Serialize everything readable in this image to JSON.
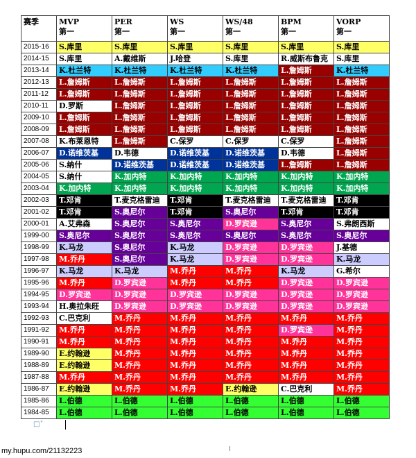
{
  "header": {
    "season": "赛季",
    "columns": [
      {
        "name": "MVP",
        "sub": "第一"
      },
      {
        "name": "PER",
        "sub": "第一"
      },
      {
        "name": "WS",
        "sub": "第一"
      },
      {
        "name": "WS/48",
        "sub": "第一"
      },
      {
        "name": "BPM",
        "sub": "第一"
      },
      {
        "name": "VORP",
        "sub": "第一"
      }
    ]
  },
  "colors": {
    "yellow": "#ffff66",
    "white": "#ffffff",
    "cyan": "#33ccff",
    "darkred": "#990000",
    "navy": "#003399",
    "green": "#00a650",
    "black": "#000000",
    "purple": "#660099",
    "magenta": "#ff3399",
    "lavender": "#ccccff",
    "red": "#ff0000",
    "lime": "#33ff33"
  },
  "rows": [
    {
      "season": "2015-16",
      "cells": [
        [
          "S.库里",
          "yellow"
        ],
        [
          "S.库里",
          "yellow"
        ],
        [
          "S.库里",
          "yellow"
        ],
        [
          "S.库里",
          "yellow"
        ],
        [
          "S.库里",
          "yellow"
        ],
        [
          "S.库里",
          "yellow"
        ]
      ]
    },
    {
      "season": "2014-15",
      "cells": [
        [
          "S.库里",
          "white"
        ],
        [
          "A.戴维斯",
          "white"
        ],
        [
          "J.哈登",
          "white"
        ],
        [
          "S.库里",
          "white"
        ],
        [
          "R.威斯布鲁克",
          "white"
        ],
        [
          "S.库里",
          "white"
        ]
      ]
    },
    {
      "season": "2013-14",
      "cells": [
        [
          "K.杜兰特",
          "cyan"
        ],
        [
          "K.杜兰特",
          "cyan"
        ],
        [
          "K.杜兰特",
          "cyan"
        ],
        [
          "K.杜兰特",
          "cyan"
        ],
        [
          "L.詹姆斯",
          "darkred"
        ],
        [
          "K.杜兰特",
          "cyan"
        ]
      ]
    },
    {
      "season": "2012-13",
      "cells": [
        [
          "L.詹姆斯",
          "darkred"
        ],
        [
          "L.詹姆斯",
          "darkred"
        ],
        [
          "L.詹姆斯",
          "darkred"
        ],
        [
          "L.詹姆斯",
          "darkred"
        ],
        [
          "L.詹姆斯",
          "darkred"
        ],
        [
          "L.詹姆斯",
          "darkred"
        ]
      ]
    },
    {
      "season": "2011-12",
      "cells": [
        [
          "L.詹姆斯",
          "darkred"
        ],
        [
          "L.詹姆斯",
          "darkred"
        ],
        [
          "L.詹姆斯",
          "darkred"
        ],
        [
          "L.詹姆斯",
          "darkred"
        ],
        [
          "L.詹姆斯",
          "darkred"
        ],
        [
          "L.詹姆斯",
          "darkred"
        ]
      ]
    },
    {
      "season": "2010-11",
      "cells": [
        [
          "D.罗斯",
          "white"
        ],
        [
          "L.詹姆斯",
          "darkred"
        ],
        [
          "L.詹姆斯",
          "darkred"
        ],
        [
          "L.詹姆斯",
          "darkred"
        ],
        [
          "L.詹姆斯",
          "darkred"
        ],
        [
          "L.詹姆斯",
          "darkred"
        ]
      ]
    },
    {
      "season": "2009-10",
      "cells": [
        [
          "L.詹姆斯",
          "darkred"
        ],
        [
          "L.詹姆斯",
          "darkred"
        ],
        [
          "L.詹姆斯",
          "darkred"
        ],
        [
          "L.詹姆斯",
          "darkred"
        ],
        [
          "L.詹姆斯",
          "darkred"
        ],
        [
          "L.詹姆斯",
          "darkred"
        ]
      ]
    },
    {
      "season": "2008-09",
      "cells": [
        [
          "L.詹姆斯",
          "darkred"
        ],
        [
          "L.詹姆斯",
          "darkred"
        ],
        [
          "L.詹姆斯",
          "darkred"
        ],
        [
          "L.詹姆斯",
          "darkred"
        ],
        [
          "L.詹姆斯",
          "darkred"
        ],
        [
          "L.詹姆斯",
          "darkred"
        ]
      ]
    },
    {
      "season": "2007-08",
      "cells": [
        [
          "K.布莱恩特",
          "white"
        ],
        [
          "L.詹姆斯",
          "darkred"
        ],
        [
          "C.保罗",
          "white"
        ],
        [
          "C.保罗",
          "white"
        ],
        [
          "C.保罗",
          "white"
        ],
        [
          "L.詹姆斯",
          "darkred"
        ]
      ]
    },
    {
      "season": "2006-07",
      "cells": [
        [
          "D.诺维茨基",
          "navy"
        ],
        [
          "D.韦德",
          "white"
        ],
        [
          "D.诺维茨基",
          "navy"
        ],
        [
          "D.诺维茨基",
          "navy"
        ],
        [
          "D.韦德",
          "white"
        ],
        [
          "L.詹姆斯",
          "darkred"
        ]
      ]
    },
    {
      "season": "2005-06",
      "cells": [
        [
          "S.纳什",
          "white"
        ],
        [
          "D.诺维茨基",
          "navy"
        ],
        [
          "D.诺维茨基",
          "navy"
        ],
        [
          "D.诺维茨基",
          "navy"
        ],
        [
          "L.詹姆斯",
          "darkred"
        ],
        [
          "L.詹姆斯",
          "darkred"
        ]
      ]
    },
    {
      "season": "2004-05",
      "cells": [
        [
          "S.纳什",
          "white"
        ],
        [
          "K.加内特",
          "green"
        ],
        [
          "K.加内特",
          "green"
        ],
        [
          "K.加内特",
          "green"
        ],
        [
          "K.加内特",
          "green"
        ],
        [
          "K.加内特",
          "green"
        ]
      ]
    },
    {
      "season": "2003-04",
      "cells": [
        [
          "K.加内特",
          "green"
        ],
        [
          "K.加内特",
          "green"
        ],
        [
          "K.加内特",
          "green"
        ],
        [
          "K.加内特",
          "green"
        ],
        [
          "K.加内特",
          "green"
        ],
        [
          "K.加内特",
          "green"
        ]
      ]
    },
    {
      "season": "2002-03",
      "cells": [
        [
          "T.邓肯",
          "black"
        ],
        [
          "T.麦克格雷迪",
          "white"
        ],
        [
          "T.邓肯",
          "black"
        ],
        [
          "T.麦克格雷迪",
          "white"
        ],
        [
          "T.麦克格雷迪",
          "white"
        ],
        [
          "T.邓肯",
          "black"
        ]
      ]
    },
    {
      "season": "2001-02",
      "cells": [
        [
          "T.邓肯",
          "black"
        ],
        [
          "S.奥尼尔",
          "purple"
        ],
        [
          "T.邓肯",
          "black"
        ],
        [
          "S.奥尼尔",
          "purple"
        ],
        [
          "T.邓肯",
          "black"
        ],
        [
          "T.邓肯",
          "black"
        ]
      ]
    },
    {
      "season": "2000-01",
      "cells": [
        [
          "A.艾弗森",
          "white"
        ],
        [
          "S.奥尼尔",
          "purple"
        ],
        [
          "S.奥尼尔",
          "purple"
        ],
        [
          "D.罗宾逊",
          "magenta"
        ],
        [
          "S.奥尼尔",
          "purple"
        ],
        [
          "S.弗朗西斯",
          "white"
        ]
      ]
    },
    {
      "season": "1999-00",
      "cells": [
        [
          "S.奥尼尔",
          "purple"
        ],
        [
          "S.奥尼尔",
          "purple"
        ],
        [
          "S.奥尼尔",
          "purple"
        ],
        [
          "S.奥尼尔",
          "purple"
        ],
        [
          "S.奥尼尔",
          "purple"
        ],
        [
          "S.奥尼尔",
          "purple"
        ]
      ]
    },
    {
      "season": "1998-99",
      "cells": [
        [
          "K.马龙",
          "lavender"
        ],
        [
          "S.奥尼尔",
          "purple"
        ],
        [
          "K.马龙",
          "lavender"
        ],
        [
          "D.罗宾逊",
          "magenta"
        ],
        [
          "D.罗宾逊",
          "magenta"
        ],
        [
          "J.基德",
          "white"
        ]
      ]
    },
    {
      "season": "1997-98",
      "cells": [
        [
          "M.乔丹",
          "red"
        ],
        [
          "S.奥尼尔",
          "purple"
        ],
        [
          "K.马龙",
          "lavender"
        ],
        [
          "D.罗宾逊",
          "magenta"
        ],
        [
          "D.罗宾逊",
          "magenta"
        ],
        [
          "K.马龙",
          "lavender"
        ]
      ]
    },
    {
      "season": "1996-97",
      "cells": [
        [
          "K.马龙",
          "lavender"
        ],
        [
          "K.马龙",
          "lavender"
        ],
        [
          "M.乔丹",
          "red"
        ],
        [
          "M.乔丹",
          "red"
        ],
        [
          "K.马龙",
          "lavender"
        ],
        [
          "G.希尔",
          "white"
        ]
      ]
    },
    {
      "season": "1995-96",
      "cells": [
        [
          "M.乔丹",
          "red"
        ],
        [
          "D.罗宾逊",
          "magenta"
        ],
        [
          "M.乔丹",
          "red"
        ],
        [
          "M.乔丹",
          "red"
        ],
        [
          "D.罗宾逊",
          "magenta"
        ],
        [
          "D.罗宾逊",
          "magenta"
        ]
      ]
    },
    {
      "season": "1994-95",
      "cells": [
        [
          "D.罗宾逊",
          "magenta"
        ],
        [
          "D.罗宾逊",
          "magenta"
        ],
        [
          "D.罗宾逊",
          "magenta"
        ],
        [
          "D.罗宾逊",
          "magenta"
        ],
        [
          "D.罗宾逊",
          "magenta"
        ],
        [
          "D.罗宾逊",
          "magenta"
        ]
      ]
    },
    {
      "season": "1993-94",
      "cells": [
        [
          "H.奥拉朱旺",
          "white"
        ],
        [
          "D.罗宾逊",
          "magenta"
        ],
        [
          "D.罗宾逊",
          "magenta"
        ],
        [
          "D.罗宾逊",
          "magenta"
        ],
        [
          "D.罗宾逊",
          "magenta"
        ],
        [
          "D.罗宾逊",
          "magenta"
        ]
      ]
    },
    {
      "season": "1992-93",
      "cells": [
        [
          "C.巴克利",
          "white"
        ],
        [
          "M.乔丹",
          "red"
        ],
        [
          "M.乔丹",
          "red"
        ],
        [
          "M.乔丹",
          "red"
        ],
        [
          "M.乔丹",
          "red"
        ],
        [
          "M.乔丹",
          "red"
        ]
      ]
    },
    {
      "season": "1991-92",
      "cells": [
        [
          "M.乔丹",
          "red"
        ],
        [
          "M.乔丹",
          "red"
        ],
        [
          "M.乔丹",
          "red"
        ],
        [
          "M.乔丹",
          "red"
        ],
        [
          "D.罗宾逊",
          "magenta"
        ],
        [
          "M.乔丹",
          "red"
        ]
      ]
    },
    {
      "season": "1990-91",
      "cells": [
        [
          "M.乔丹",
          "red"
        ],
        [
          "M.乔丹",
          "red"
        ],
        [
          "M.乔丹",
          "red"
        ],
        [
          "M.乔丹",
          "red"
        ],
        [
          "M.乔丹",
          "red"
        ],
        [
          "M.乔丹",
          "red"
        ]
      ]
    },
    {
      "season": "1989-90",
      "cells": [
        [
          "E.约翰逊",
          "yellow"
        ],
        [
          "M.乔丹",
          "red"
        ],
        [
          "M.乔丹",
          "red"
        ],
        [
          "M.乔丹",
          "red"
        ],
        [
          "M.乔丹",
          "red"
        ],
        [
          "M.乔丹",
          "red"
        ]
      ]
    },
    {
      "season": "1988-89",
      "cells": [
        [
          "E.约翰逊",
          "yellow"
        ],
        [
          "M.乔丹",
          "red"
        ],
        [
          "M.乔丹",
          "red"
        ],
        [
          "M.乔丹",
          "red"
        ],
        [
          "M.乔丹",
          "red"
        ],
        [
          "M.乔丹",
          "red"
        ]
      ]
    },
    {
      "season": "1987-88",
      "cells": [
        [
          "M.乔丹",
          "red"
        ],
        [
          "M.乔丹",
          "red"
        ],
        [
          "M.乔丹",
          "red"
        ],
        [
          "M.乔丹",
          "red"
        ],
        [
          "M.乔丹",
          "red"
        ],
        [
          "M.乔丹",
          "red"
        ]
      ]
    },
    {
      "season": "1986-87",
      "cells": [
        [
          "E.约翰逊",
          "yellow"
        ],
        [
          "M.乔丹",
          "red"
        ],
        [
          "M.乔丹",
          "red"
        ],
        [
          "E.约翰逊",
          "yellow"
        ],
        [
          "C.巴克利",
          "white"
        ],
        [
          "M.乔丹",
          "red"
        ]
      ]
    },
    {
      "season": "1985-86",
      "cells": [
        [
          "L.伯德",
          "lime"
        ],
        [
          "L.伯德",
          "lime"
        ],
        [
          "L.伯德",
          "lime"
        ],
        [
          "L.伯德",
          "lime"
        ],
        [
          "L.伯德",
          "lime"
        ],
        [
          "L.伯德",
          "lime"
        ]
      ]
    },
    {
      "season": "1984-85",
      "cells": [
        [
          "L.伯德",
          "lime"
        ],
        [
          "L.伯德",
          "lime"
        ],
        [
          "L.伯德",
          "lime"
        ],
        [
          "L.伯德",
          "lime"
        ],
        [
          "L.伯德",
          "lime"
        ],
        [
          "L.伯德",
          "lime"
        ]
      ]
    }
  ],
  "footer": {
    "page_marker": "I",
    "watermark": "my.hupu.com/21132223"
  }
}
